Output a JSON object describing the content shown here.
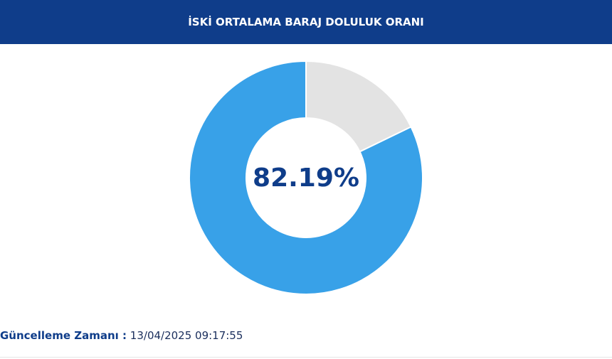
{
  "header": {
    "title": "İSKİ ORTALAMA BARAJ DOLULUK ORANI"
  },
  "chart_data": {
    "type": "pie",
    "values": [
      82.19,
      17.81
    ],
    "value_labels": [
      "82.19%",
      null
    ],
    "colors": [
      "#38a1e8",
      "#e3e3e3"
    ]
  },
  "footer": {
    "label": "Güncelleme Zamanı :",
    "value": "13/04/2025 09:17:55"
  }
}
